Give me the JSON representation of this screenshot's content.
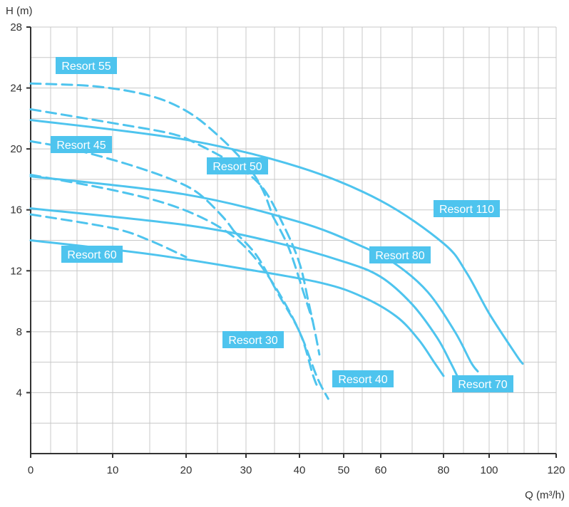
{
  "chart_data": {
    "type": "line",
    "title": "",
    "xlabel": "Q (m³/h)",
    "ylabel": "H (m)",
    "ylim": [
      0,
      28
    ],
    "grid": true,
    "x_axis_note": "non-linear axis: labeled ticks are positioned unevenly",
    "x_ticks": [
      "0",
      "10",
      "20",
      "30",
      "40",
      "50",
      "60",
      "80",
      "100",
      "120"
    ],
    "y_ticks": [
      "4",
      "8",
      "12",
      "16",
      "20",
      "24",
      "28"
    ],
    "colors": {
      "curve": "#4ec4ee",
      "label_bg": "#4ec4ee",
      "label_text": "#ffffff",
      "grid": "#c8c8c8",
      "axis": "#333333"
    },
    "series": [
      {
        "name": "Resort 55",
        "style": "dashed",
        "points": [
          [
            0,
            24.3
          ],
          [
            8,
            24.1
          ],
          [
            15,
            23.5
          ],
          [
            20,
            22.5
          ],
          [
            25,
            21
          ],
          [
            30,
            19
          ],
          [
            33,
            17.4
          ],
          [
            35,
            15.6
          ]
        ]
      },
      {
        "name": "Resort 50",
        "style": "dashed",
        "points": [
          [
            0,
            22.6
          ],
          [
            10,
            21.7
          ],
          [
            18,
            21
          ],
          [
            22,
            20.3
          ],
          [
            28,
            19
          ],
          [
            33,
            17.5
          ],
          [
            37,
            15
          ],
          [
            40,
            12.5
          ],
          [
            42,
            10
          ],
          [
            43.5,
            8
          ],
          [
            44.5,
            6.5
          ]
        ]
      },
      {
        "name": "Resort 45",
        "style": "dashed",
        "points": [
          [
            0,
            20.5
          ],
          [
            5,
            20
          ],
          [
            12,
            19
          ],
          [
            18,
            18
          ],
          [
            22,
            17.1
          ],
          [
            26,
            15.6
          ],
          [
            28,
            14.6
          ]
        ]
      },
      {
        "name": "Resort 40",
        "style": "dashed",
        "points": [
          [
            0,
            18.3
          ],
          [
            10,
            17.3
          ],
          [
            18,
            16.3
          ],
          [
            25,
            15
          ],
          [
            30,
            13.5
          ],
          [
            35,
            11.2
          ],
          [
            40,
            8
          ],
          [
            43,
            5.2
          ],
          [
            44.2,
            4.3
          ]
        ]
      },
      {
        "name": "Resort 30",
        "style": "dashed",
        "points": [
          [
            0,
            15.7
          ],
          [
            10,
            14.8
          ],
          [
            15,
            14
          ],
          [
            20,
            12.9
          ]
        ]
      },
      {
        "name": "Resort 55 (steep segment)",
        "style": "dashed",
        "points": [
          [
            35,
            15.6
          ],
          [
            38,
            13.5
          ],
          [
            41,
            10.5
          ],
          [
            43,
            8.7
          ]
        ]
      },
      {
        "name": "Resort 45 (steep segment)",
        "style": "dashed",
        "points": [
          [
            28,
            14.6
          ],
          [
            32,
            13
          ],
          [
            36,
            10.5
          ],
          [
            40,
            8
          ],
          [
            44,
            5
          ],
          [
            46.5,
            3.6
          ]
        ]
      },
      {
        "name": "Resort 110",
        "style": "solid",
        "points": [
          [
            0,
            21.9
          ],
          [
            20,
            20.6
          ],
          [
            40,
            18.8
          ],
          [
            60,
            16.6
          ],
          [
            80,
            13.8
          ],
          [
            90,
            11.9
          ],
          [
            100,
            9.2
          ],
          [
            108,
            6.5
          ],
          [
            110,
            5.9
          ]
        ]
      },
      {
        "name": "Resort 80",
        "style": "solid",
        "points": [
          [
            0,
            18.2
          ],
          [
            20,
            17
          ],
          [
            40,
            15.2
          ],
          [
            55,
            13.6
          ],
          [
            65,
            12.4
          ],
          [
            75,
            10.6
          ],
          [
            85,
            8
          ],
          [
            92,
            6
          ],
          [
            95,
            5.4
          ]
        ]
      },
      {
        "name": "Resort 70",
        "style": "solid",
        "points": [
          [
            0,
            16.1
          ],
          [
            20,
            15
          ],
          [
            35,
            13.9
          ],
          [
            50,
            12.6
          ],
          [
            60,
            11.6
          ],
          [
            70,
            9.8
          ],
          [
            78,
            7.6
          ],
          [
            83,
            6
          ],
          [
            86,
            5.1
          ]
        ]
      },
      {
        "name": "Resort 60",
        "style": "solid",
        "points": [
          [
            0,
            14
          ],
          [
            15,
            13.1
          ],
          [
            30,
            12.1
          ],
          [
            45,
            11.2
          ],
          [
            55,
            10.3
          ],
          [
            65,
            9
          ],
          [
            72,
            7.5
          ],
          [
            77,
            6
          ],
          [
            80,
            5.1
          ]
        ]
      }
    ],
    "labels": [
      {
        "text": "Resort 55",
        "points_to": "Resort 55"
      },
      {
        "text": "Resort 45",
        "points_to": "Resort 45"
      },
      {
        "text": "Resort 50",
        "points_to": "Resort 50"
      },
      {
        "text": "Resort 110",
        "points_to": "Resort 110"
      },
      {
        "text": "Resort 80",
        "points_to": "Resort 80"
      },
      {
        "text": "Resort 60",
        "points_to": "Resort 60"
      },
      {
        "text": "Resort 30",
        "points_to": "Resort 30"
      },
      {
        "text": "Resort 40",
        "points_to": "Resort 40"
      },
      {
        "text": "Resort 70",
        "points_to": "Resort 70"
      }
    ]
  }
}
